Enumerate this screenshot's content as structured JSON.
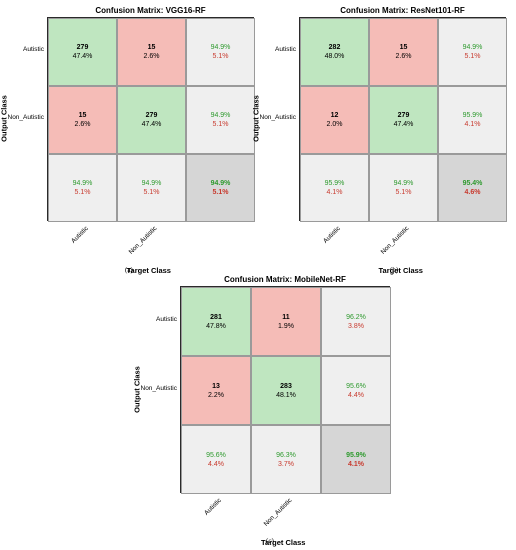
{
  "chart_data": [
    {
      "type": "heatmap",
      "title": "Confusion Matrix: VGG16-RF",
      "xlabel": "Target Class",
      "ylabel": "Output Class",
      "row_labels": [
        "Autistic",
        "Non_Autistic"
      ],
      "col_labels": [
        "Autistic",
        "Non_Autistic"
      ],
      "cells": [
        [
          {
            "count": "279",
            "pct": "47.4%"
          },
          {
            "count": "15",
            "pct": "2.6%"
          },
          {
            "correct": "94.9%",
            "wrong": "5.1%"
          }
        ],
        [
          {
            "count": "15",
            "pct": "2.6%"
          },
          {
            "count": "279",
            "pct": "47.4%"
          },
          {
            "correct": "94.9%",
            "wrong": "5.1%"
          }
        ],
        [
          {
            "correct": "94.9%",
            "wrong": "5.1%"
          },
          {
            "correct": "94.9%",
            "wrong": "5.1%"
          },
          {
            "correct": "94.9%",
            "wrong": "5.1%"
          }
        ]
      ],
      "caption": "(a)"
    },
    {
      "type": "heatmap",
      "title": "Confusion Matrix: ResNet101-RF",
      "xlabel": "Target Class",
      "ylabel": "Output Class",
      "row_labels": [
        "Autistic",
        "Non_Autistic"
      ],
      "col_labels": [
        "Autistic",
        "Non_Autistic"
      ],
      "cells": [
        [
          {
            "count": "282",
            "pct": "48.0%"
          },
          {
            "count": "15",
            "pct": "2.6%"
          },
          {
            "correct": "94.9%",
            "wrong": "5.1%"
          }
        ],
        [
          {
            "count": "12",
            "pct": "2.0%"
          },
          {
            "count": "279",
            "pct": "47.4%"
          },
          {
            "correct": "95.9%",
            "wrong": "4.1%"
          }
        ],
        [
          {
            "correct": "95.9%",
            "wrong": "4.1%"
          },
          {
            "correct": "94.9%",
            "wrong": "5.1%"
          },
          {
            "correct": "95.4%",
            "wrong": "4.6%"
          }
        ]
      ],
      "caption": "(b)"
    },
    {
      "type": "heatmap",
      "title": "Confusion Matrix: MobileNet-RF",
      "xlabel": "Target Class",
      "ylabel": "Output Class",
      "row_labels": [
        "Autistic",
        "Non_Autistic"
      ],
      "col_labels": [
        "Autistic",
        "Non_Autistic"
      ],
      "cells": [
        [
          {
            "count": "281",
            "pct": "47.8%"
          },
          {
            "count": "11",
            "pct": "1.9%"
          },
          {
            "correct": "96.2%",
            "wrong": "3.8%"
          }
        ],
        [
          {
            "count": "13",
            "pct": "2.2%"
          },
          {
            "count": "283",
            "pct": "48.1%"
          },
          {
            "correct": "95.6%",
            "wrong": "4.4%"
          }
        ],
        [
          {
            "correct": "95.6%",
            "wrong": "4.4%"
          },
          {
            "correct": "96.3%",
            "wrong": "3.7%"
          },
          {
            "correct": "95.9%",
            "wrong": "4.1%"
          }
        ]
      ],
      "caption": "(c)"
    }
  ]
}
